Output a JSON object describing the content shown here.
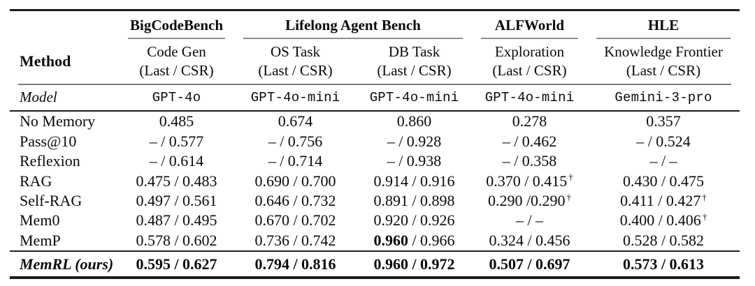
{
  "table": {
    "method_header": "Method",
    "model_row_label": "Model",
    "groups": [
      {
        "label": "BigCodeBench",
        "span": 1
      },
      {
        "label": "Lifelong Agent Bench",
        "span": 2
      },
      {
        "label": "ALFWorld",
        "span": 1
      },
      {
        "label": "HLE",
        "span": 1
      }
    ],
    "columns": [
      {
        "task": "Code Gen",
        "metric": "(Last / CSR)",
        "model": "GPT-4o"
      },
      {
        "task": "OS Task",
        "metric": "(Last / CSR)",
        "model": "GPT-4o-mini"
      },
      {
        "task": "DB Task",
        "metric": "(Last / CSR)",
        "model": "GPT-4o-mini"
      },
      {
        "task": "Exploration",
        "metric": "(Last / CSR)",
        "model": "GPT-4o-mini"
      },
      {
        "task": "Knowledge Frontier",
        "metric": "(Last / CSR)",
        "model": "Gemini-3-pro"
      }
    ],
    "rows": [
      {
        "method": "No Memory",
        "cells": [
          {
            "t": "0.485"
          },
          {
            "t": "0.674"
          },
          {
            "t": "0.860"
          },
          {
            "t": "0.278"
          },
          {
            "t": "0.357"
          }
        ]
      },
      {
        "method": "Pass@10",
        "cells": [
          {
            "t": "– / 0.577"
          },
          {
            "t": "– / 0.756"
          },
          {
            "t": "– / 0.928"
          },
          {
            "t": "– / 0.462"
          },
          {
            "t": "– / 0.524"
          }
        ]
      },
      {
        "method": "Reflexion",
        "cells": [
          {
            "t": "– / 0.614"
          },
          {
            "t": "– / 0.714"
          },
          {
            "t": "– / 0.938"
          },
          {
            "t": "– / 0.358"
          },
          {
            "t": "– / –"
          }
        ]
      },
      {
        "method": "RAG",
        "cells": [
          {
            "t": "0.475 / 0.483"
          },
          {
            "t": "0.690 / 0.700"
          },
          {
            "t": "0.914 / 0.916"
          },
          {
            "t": "0.370 / 0.415",
            "dagger": true
          },
          {
            "t": "0.430 / 0.475"
          }
        ]
      },
      {
        "method": "Self-RAG",
        "cells": [
          {
            "t": "0.497 / 0.561"
          },
          {
            "t": "0.646 / 0.732"
          },
          {
            "t": "0.891 / 0.898"
          },
          {
            "t": "0.290 /0.290",
            "dagger": true
          },
          {
            "t": "0.411 / 0.427",
            "dagger": true
          }
        ]
      },
      {
        "method": "Mem0",
        "cells": [
          {
            "t": "0.487 / 0.495"
          },
          {
            "t": "0.670 / 0.702"
          },
          {
            "t": "0.920 / 0.926"
          },
          {
            "t": "– / –"
          },
          {
            "t": "0.400 / 0.406",
            "dagger": true
          }
        ]
      },
      {
        "method": "MemP",
        "cells": [
          {
            "t": "0.578 / 0.602"
          },
          {
            "t": "0.736 / 0.742"
          },
          {
            "bold_first": "0.960",
            "t": " / 0.966"
          },
          {
            "t": "0.324 / 0.456"
          },
          {
            "t": "0.528 / 0.582"
          }
        ]
      }
    ],
    "final_row": {
      "method": "MemRL (ours)",
      "cells": [
        {
          "t": "0.595 / 0.627"
        },
        {
          "t": "0.794 / 0.816"
        },
        {
          "t": "0.960 / 0.972"
        },
        {
          "t": "0.507 / 0.697"
        },
        {
          "t": "0.573 / 0.613"
        }
      ]
    },
    "rule_colors": {
      "heavy": "#1c1c1c",
      "light": "#8d8d8d"
    }
  }
}
